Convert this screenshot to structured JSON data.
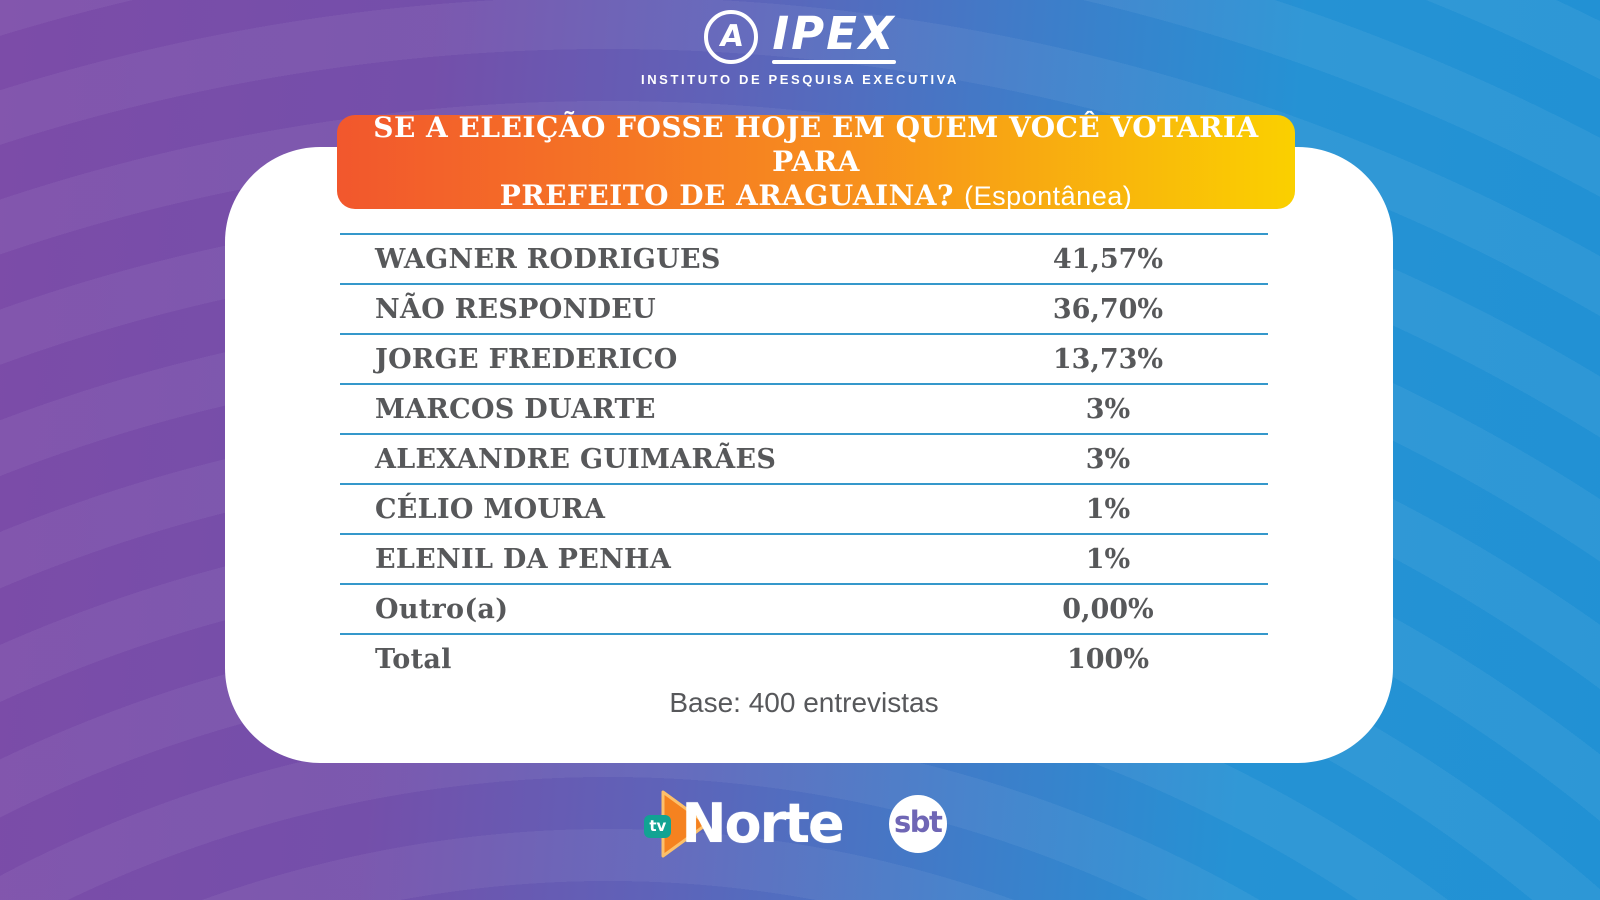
{
  "brand": {
    "ipex_letter": "A",
    "ipex_name": "IPEX",
    "ipex_subtitle": "INSTITUTO DE PESQUISA EXECUTIVA"
  },
  "banner": {
    "line1": "SE A ELEIÇÃO FOSSE HOJE EM QUEM VOCÊ VOTARIA PARA",
    "line2_bold": "PREFEITO DE ARAGUAINA?",
    "line2_normal": "(Espontânea)"
  },
  "table": {
    "rows": [
      {
        "name": "WAGNER RODRIGUES",
        "value": "41,57%"
      },
      {
        "name": "NÃO RESPONDEU",
        "value": "36,70%"
      },
      {
        "name": "JORGE FREDERICO",
        "value": "13,73%"
      },
      {
        "name": "MARCOS DUARTE",
        "value": "3%"
      },
      {
        "name": "ALEXANDRE GUIMARÃES",
        "value": "3%"
      },
      {
        "name": "CÉLIO MOURA",
        "value": "1%"
      },
      {
        "name": "ELENIL DA PENHA",
        "value": "1%"
      },
      {
        "name": "Outro(a)",
        "value": "0,00%"
      },
      {
        "name": "Total",
        "value": "100%"
      }
    ]
  },
  "base_note": "Base: 400 entrevistas",
  "footer": {
    "tvnorte_tv": "tv",
    "tvnorte_name": "Norte",
    "sbt": "sbt"
  },
  "colors": {
    "bg_purple": "#7C4CA8",
    "bg_blue": "#2191D4",
    "banner_start": "#F2572D",
    "banner_end": "#FAD000",
    "table_line": "#3598CB",
    "text_dark": "#57585A",
    "tvnorte_orange": "#F58220",
    "tvnorte_teal": "#12A393",
    "sbt_purple": "#6F66B5"
  },
  "chart_data": {
    "type": "table",
    "title": "SE A ELEIÇÃO FOSSE HOJE EM QUEM VOCÊ VOTARIA PARA PREFEITO DE ARAGUAINA? (Espontânea)",
    "categories": [
      "WAGNER RODRIGUES",
      "NÃO RESPONDEU",
      "JORGE FREDERICO",
      "MARCOS DUARTE",
      "ALEXANDRE GUIMARÃES",
      "CÉLIO MOURA",
      "ELENIL DA PENHA",
      "Outro(a)",
      "Total"
    ],
    "values": [
      41.57,
      36.7,
      13.73,
      3,
      3,
      1,
      1,
      0.0,
      100
    ],
    "value_labels": [
      "41,57%",
      "36,70%",
      "13,73%",
      "3%",
      "3%",
      "1%",
      "1%",
      "0,00%",
      "100%"
    ],
    "note": "Base: 400 entrevistas",
    "source": "IPEX - INSTITUTO DE PESQUISA EXECUTIVA"
  }
}
